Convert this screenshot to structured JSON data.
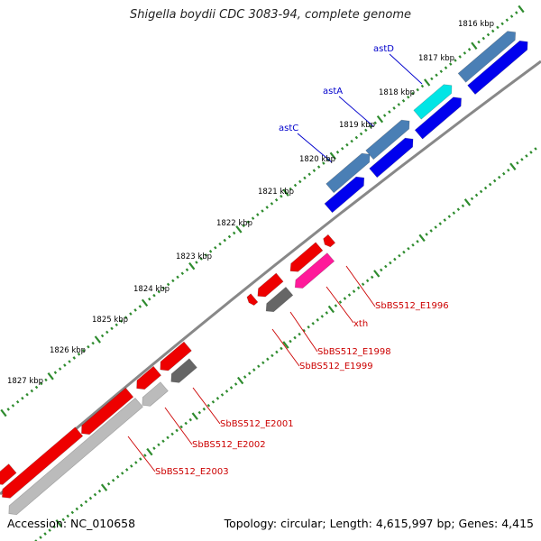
{
  "title": "Shigella boydii CDC 3083-94, complete genome",
  "accession": "Accession: NC_010658",
  "summary": "Topology: circular; Length: 4,615,997 bp; Genes: 4,415",
  "ruler": {
    "labels": [
      "1816 kbp",
      "1817 kbp",
      "1818 kbp",
      "1819 kbp",
      "1820 kbp",
      "1821 kbp",
      "1822 kbp",
      "1823 kbp",
      "1824 kbp",
      "1825 kbp",
      "1826 kbp",
      "1827 kbp"
    ]
  },
  "colors": {
    "backbone": "#888888",
    "tick": "#2e8b2e",
    "forward_gene": "#0000ee",
    "forward_gene_light": "#4a7fb5",
    "highlight_gene": "#00e5e5",
    "reverse_gene": "#ee0000",
    "reverse_gene_dark": "#666666",
    "reverse_gene_light": "#bbbbbb",
    "pink_gene": "#ff1a9a",
    "label_blue": "#0000cc",
    "label_red": "#cc0000"
  },
  "forward_labels": [
    "astD",
    "astA",
    "astC"
  ],
  "reverse_labels": [
    "SbBS512_E1996",
    "xth",
    "SbBS512_E1998",
    "SbBS512_E1999",
    "SbBS512_E2001",
    "SbBS512_E2002",
    "SbBS512_E2003"
  ]
}
